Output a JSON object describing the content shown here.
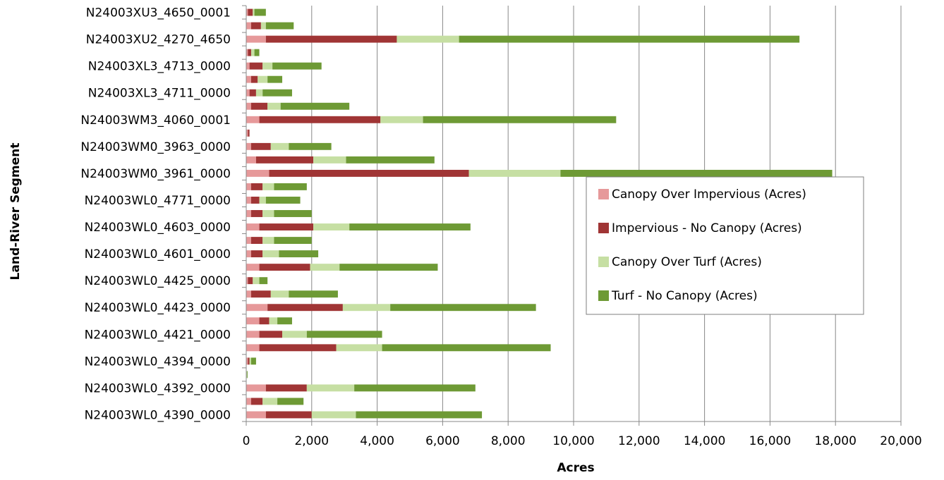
{
  "chart_data": {
    "type": "bar",
    "orientation": "horizontal",
    "stacked": true,
    "xlabel": "Acres",
    "ylabel": "Land-River Segment",
    "xlim": [
      0,
      20000
    ],
    "xticks": [
      0,
      2000,
      4000,
      6000,
      8000,
      10000,
      12000,
      14000,
      16000,
      18000,
      20000
    ],
    "xtick_labels": [
      "0",
      "2,000",
      "4,000",
      "6,000",
      "8,000",
      "10,000",
      "12,000",
      "14,000",
      "16,000",
      "18,000",
      "20,000"
    ],
    "grid": "vertical",
    "legend_position": "right",
    "categories": [
      "N24003WL0_4390_0000",
      "",
      "N24003WL0_4392_0000",
      "",
      "N24003WL0_4394_0000",
      "",
      "N24003WL0_4421_0000",
      "",
      "N24003WL0_4423_0000",
      "",
      "N24003WL0_4425_0000",
      "",
      "N24003WL0_4601_0000",
      "",
      "N24003WL0_4603_0000",
      "",
      "N24003WL0_4771_0000",
      "",
      "N24003WM0_3961_0000",
      "",
      "N24003WM0_3963_0000",
      "",
      "N24003WM3_4060_0001",
      "",
      "N24003XL3_4711_0000",
      "",
      "N24003XL3_4713_0000",
      "",
      "N24003XU2_4270_4650",
      "",
      "N24003XU3_4650_0001"
    ],
    "series": [
      {
        "name": "Canopy Over Impervious (Acres)",
        "color": "#e6999a",
        "values": [
          600,
          150,
          600,
          0,
          50,
          400,
          400,
          400,
          650,
          150,
          50,
          400,
          150,
          150,
          400,
          150,
          150,
          150,
          700,
          300,
          150,
          50,
          400,
          150,
          100,
          150,
          100,
          50,
          600,
          150,
          50
        ]
      },
      {
        "name": "Impervious - No Canopy (Acres)",
        "color": "#a03535",
        "values": [
          1400,
          350,
          1250,
          0,
          50,
          2350,
          700,
          300,
          2300,
          600,
          150,
          1550,
          350,
          350,
          1650,
          350,
          250,
          350,
          6100,
          1750,
          600,
          50,
          3700,
          500,
          200,
          200,
          400,
          100,
          4000,
          300,
          150
        ]
      },
      {
        "name": "Canopy Over Turf (Acres)",
        "color": "#c6dfa3",
        "values": [
          1350,
          450,
          1450,
          20,
          50,
          1400,
          750,
          250,
          1450,
          550,
          200,
          900,
          500,
          350,
          1100,
          350,
          200,
          350,
          2800,
          1000,
          550,
          0,
          1300,
          400,
          200,
          300,
          300,
          100,
          1900,
          150,
          50
        ]
      },
      {
        "name": "Turf - No Canopy (Acres)",
        "color": "#6e9a35",
        "values": [
          3850,
          800,
          3700,
          20,
          150,
          5150,
          2300,
          450,
          4450,
          1500,
          250,
          3000,
          1200,
          1150,
          3700,
          1150,
          1050,
          1000,
          8300,
          2700,
          1300,
          0,
          5900,
          2100,
          900,
          450,
          1500,
          150,
          10400,
          850,
          350
        ]
      }
    ]
  }
}
